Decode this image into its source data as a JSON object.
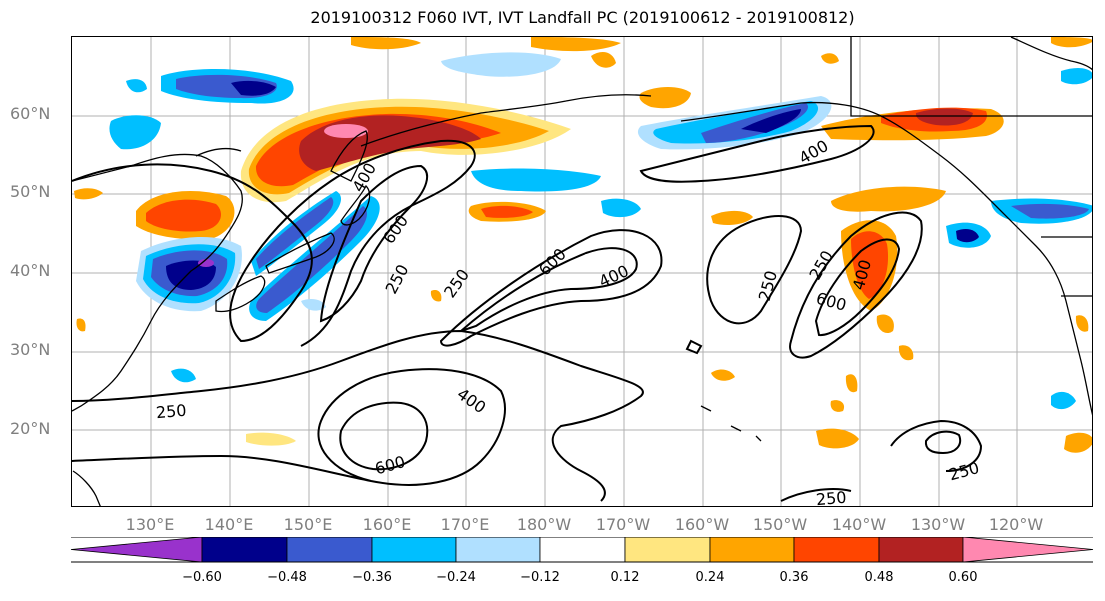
{
  "title": "2019100312 F060 IVT, IVT Landfall PC (2019100612 - 2019100812)",
  "lat_labels": [
    "60°N",
    "50°N",
    "40°N",
    "30°N",
    "20°N"
  ],
  "lon_labels": [
    "130°E",
    "140°E",
    "150°E",
    "160°E",
    "170°E",
    "180°W",
    "170°W",
    "160°W",
    "150°W",
    "140°W",
    "130°W",
    "120°W"
  ],
  "contour_labels": [
    "400",
    "600",
    "250",
    "250",
    "600",
    "400",
    "400",
    "250",
    "250",
    "600",
    "400",
    "250",
    "400",
    "600",
    "250",
    "250"
  ],
  "colorbar": {
    "ticks": [
      "−0.60",
      "−0.48",
      "−0.36",
      "−0.24",
      "−0.12",
      "0.12",
      "0.24",
      "0.36",
      "0.48",
      "0.60"
    ],
    "colors": [
      "#9932cc",
      "#00008b",
      "#3a5acf",
      "#00bfff",
      "#b0e0ff",
      "#ffffff",
      "#ffe680",
      "#ffa500",
      "#ff4500",
      "#b22222",
      "#ff88b0"
    ],
    "extend": "both"
  }
}
